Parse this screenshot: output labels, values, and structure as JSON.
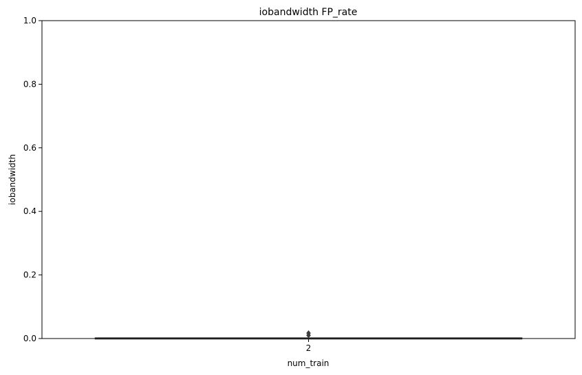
{
  "chart_data": {
    "type": "box",
    "title": "iobandwidth FP_rate",
    "xlabel": "num_train",
    "ylabel": "iobandwidth",
    "categories": [
      "2"
    ],
    "ylim": [
      0,
      1.0
    ],
    "yticks": [
      "0.0",
      "0.2",
      "0.4",
      "0.6",
      "0.8",
      "1.0"
    ],
    "boxes": [
      {
        "category": "2",
        "min": 0.0,
        "q1": 0.0,
        "median": 0.0,
        "q3": 0.002,
        "max": 0.002,
        "outliers": [
          0.01,
          0.017
        ]
      }
    ],
    "grid": false,
    "colors": {
      "box": "#3d3d3d",
      "axis": "#000000"
    }
  }
}
